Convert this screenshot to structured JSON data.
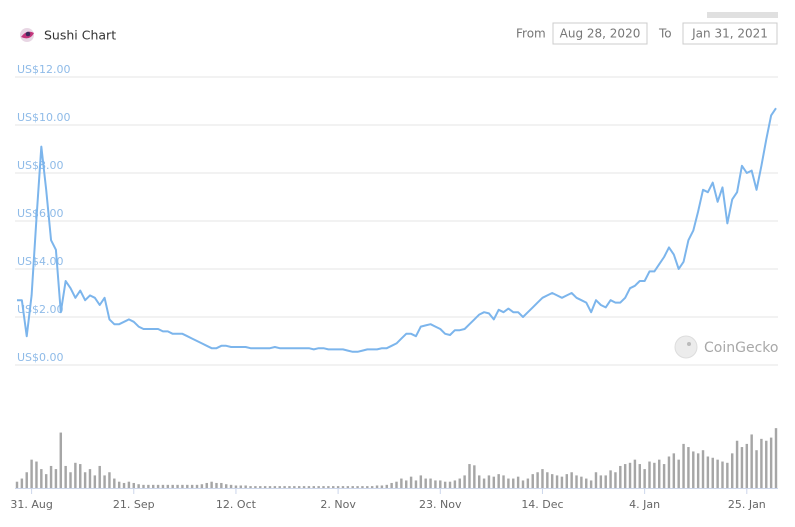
{
  "controls": {
    "from_label": "From",
    "from_date": "Aug 28, 2020",
    "to_label": "To",
    "to_date": "Jan 31, 2021"
  },
  "chart_data": {
    "type": "line",
    "title": "Sushi Chart",
    "watermark": "CoinGecko",
    "categories": [
      null,
      null,
      null,
      "31. Aug",
      null,
      null,
      null,
      null,
      null,
      null,
      null,
      null,
      null,
      null,
      null,
      null,
      null,
      null,
      null,
      null,
      null,
      null,
      null,
      null,
      "21. Sep",
      null,
      null,
      null,
      null,
      null,
      null,
      null,
      null,
      null,
      null,
      null,
      null,
      null,
      null,
      null,
      null,
      null,
      null,
      null,
      null,
      "12. Oct",
      null,
      null,
      null,
      null,
      null,
      null,
      null,
      null,
      null,
      null,
      null,
      null,
      null,
      null,
      null,
      null,
      null,
      null,
      null,
      null,
      "2. Nov",
      null,
      null,
      null,
      null,
      null,
      null,
      null,
      null,
      null,
      null,
      null,
      null,
      null,
      null,
      null,
      null,
      null,
      null,
      null,
      null,
      "23. Nov",
      null,
      null,
      null,
      null,
      null,
      null,
      null,
      null,
      null,
      null,
      null,
      null,
      null,
      null,
      null,
      null,
      null,
      null,
      null,
      null,
      "14. Dec",
      null,
      null,
      null,
      null,
      null,
      null,
      null,
      null,
      null,
      null,
      null,
      null,
      null,
      null,
      null,
      null,
      null,
      null,
      null,
      null,
      "4. Jan",
      null,
      null,
      null,
      null,
      null,
      null,
      null,
      null,
      null,
      null,
      null,
      null,
      null,
      null,
      null,
      null,
      null,
      null,
      null,
      null,
      "25. Jan",
      null,
      null,
      null,
      null,
      null,
      null
    ],
    "series": [
      {
        "color": "#7cb5ec",
        "values": [
          2.7,
          2.7,
          1.2,
          2.9,
          6.1,
          9.1,
          7.3,
          5.2,
          4.8,
          2.2,
          3.5,
          3.2,
          2.8,
          3.1,
          2.7,
          2.9,
          2.8,
          2.5,
          2.8,
          1.9,
          1.7,
          1.7,
          1.8,
          1.9,
          1.8,
          1.6,
          1.5,
          1.5,
          1.5,
          1.5,
          1.4,
          1.4,
          1.3,
          1.3,
          1.3,
          1.2,
          1.1,
          1.0,
          0.9,
          0.8,
          0.7,
          0.7,
          0.8,
          0.8,
          0.75,
          0.75,
          0.75,
          0.75,
          0.7,
          0.7,
          0.7,
          0.7,
          0.7,
          0.75,
          0.7,
          0.7,
          0.7,
          0.7,
          0.7,
          0.7,
          0.7,
          0.65,
          0.7,
          0.7,
          0.65,
          0.65,
          0.65,
          0.65,
          0.6,
          0.55,
          0.55,
          0.6,
          0.65,
          0.65,
          0.65,
          0.7,
          0.7,
          0.8,
          0.9,
          1.1,
          1.3,
          1.3,
          1.2,
          1.6,
          1.65,
          1.7,
          1.6,
          1.5,
          1.3,
          1.25,
          1.45,
          1.45,
          1.5,
          1.7,
          1.9,
          2.1,
          2.2,
          2.15,
          1.9,
          2.3,
          2.2,
          2.35,
          2.2,
          2.2,
          2.0,
          2.2,
          2.4,
          2.6,
          2.8,
          2.9,
          3.0,
          2.9,
          2.8,
          2.9,
          3.0,
          2.8,
          2.7,
          2.6,
          2.2,
          2.7,
          2.5,
          2.4,
          2.7,
          2.6,
          2.6,
          2.8,
          3.2,
          3.3,
          3.5,
          3.5,
          3.9,
          3.9,
          4.2,
          4.5,
          4.9,
          4.6,
          4.0,
          4.3,
          5.2,
          5.6,
          6.4,
          7.3,
          7.2,
          7.6,
          6.8,
          7.4,
          5.9,
          6.9,
          7.2,
          8.3,
          8.0,
          8.1,
          7.3,
          8.3,
          9.4,
          10.4,
          10.7
        ]
      },
      {
        "type": "bar",
        "axis": "y2",
        "color": "#a6a6a6",
        "values": [
          10,
          15,
          25,
          45,
          42,
          30,
          22,
          35,
          30,
          88,
          35,
          25,
          40,
          38,
          25,
          30,
          20,
          35,
          20,
          25,
          15,
          10,
          8,
          10,
          8,
          6,
          5,
          5,
          5,
          5,
          5,
          5,
          5,
          5,
          5,
          5,
          5,
          5,
          6,
          8,
          10,
          8,
          8,
          6,
          5,
          4,
          4,
          4,
          3,
          3,
          3,
          3,
          3,
          3,
          3,
          3,
          3,
          3,
          3,
          3,
          3,
          3,
          3,
          3,
          3,
          3,
          3,
          3,
          3,
          3,
          3,
          3,
          3,
          3,
          4,
          4,
          5,
          8,
          10,
          15,
          12,
          18,
          12,
          20,
          15,
          15,
          12,
          12,
          10,
          10,
          12,
          15,
          20,
          38,
          36,
          20,
          15,
          20,
          18,
          22,
          20,
          15,
          15,
          18,
          12,
          15,
          22,
          25,
          30,
          25,
          22,
          20,
          18,
          22,
          25,
          20,
          18,
          15,
          12,
          25,
          20,
          20,
          28,
          25,
          35,
          38,
          40,
          45,
          38,
          30,
          42,
          40,
          45,
          38,
          50,
          55,
          45,
          70,
          65,
          58,
          55,
          60,
          50,
          48,
          45,
          42,
          40,
          55,
          75,
          65,
          70,
          85,
          60,
          78,
          75,
          80,
          95
        ]
      }
    ],
    "ylim": [
      0,
      12
    ],
    "yticks": [
      {
        "value": 0,
        "label": "US$0.00"
      },
      {
        "value": 2,
        "label": "US$2.00"
      },
      {
        "value": 4,
        "label": "US$4.00"
      },
      {
        "value": 6,
        "label": "US$6.00"
      },
      {
        "value": 8,
        "label": "US$8.00"
      },
      {
        "value": 10,
        "label": "US$10.00"
      },
      {
        "value": 12,
        "label": "US$12.00"
      }
    ],
    "y2lim": [
      0,
      100
    ],
    "grid": true
  }
}
